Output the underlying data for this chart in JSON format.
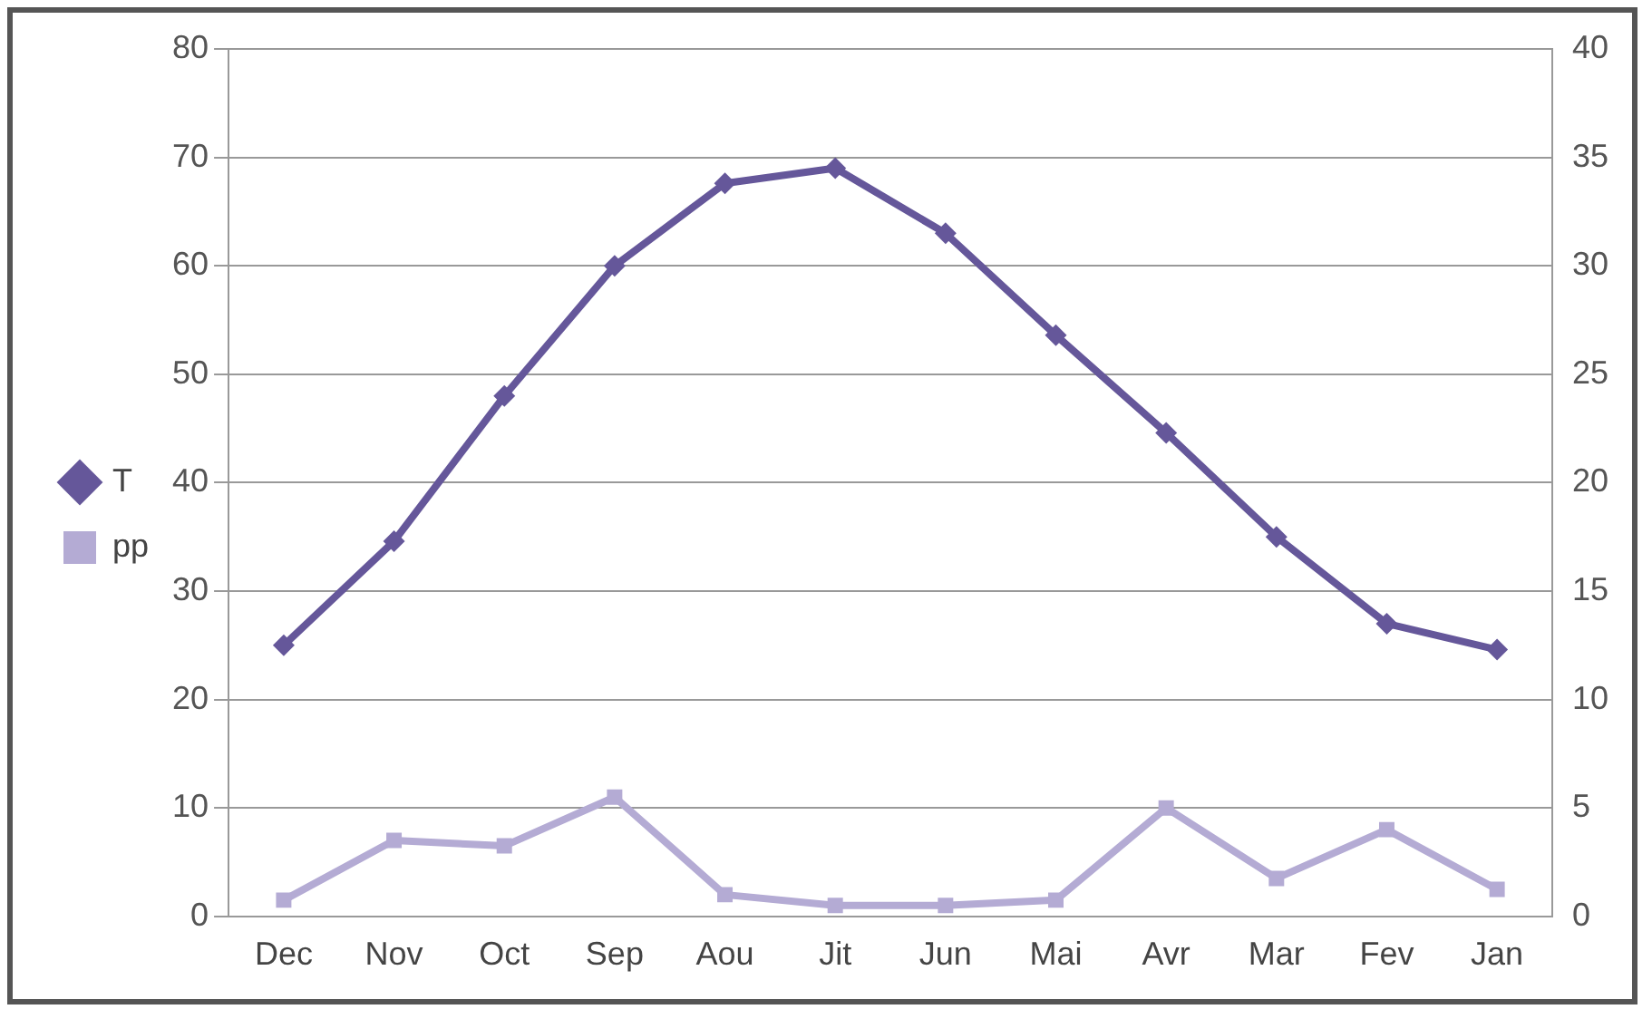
{
  "chart_data": {
    "type": "line",
    "categories": [
      "Dec",
      "Nov",
      "Oct",
      "Sep",
      "Aou",
      "Jit",
      "Jun",
      "Mai",
      "Avr",
      "Mar",
      "Fev",
      "Jan"
    ],
    "series": [
      {
        "name": "T",
        "color": "#65579a",
        "marker": "diamond",
        "axis": "y2",
        "values": [
          12.5,
          17.3,
          24,
          30,
          33.8,
          34.5,
          31.5,
          26.8,
          22.3,
          17.5,
          13.5,
          12.3
        ]
      },
      {
        "name": "pp",
        "color": "#b4abd4",
        "marker": "square",
        "values": [
          1.5,
          7,
          6.5,
          11,
          2,
          1,
          1,
          1.5,
          10,
          3.5,
          8,
          2.5
        ]
      }
    ],
    "ylim": [
      0,
      80
    ],
    "yticks": [
      0,
      10,
      20,
      30,
      40,
      50,
      60,
      70,
      80
    ],
    "y2lim": [
      0,
      40
    ],
    "y2ticks": [
      0,
      5,
      10,
      15,
      20,
      25,
      30,
      35,
      40
    ],
    "grid": "y",
    "legend": "left",
    "line_style": "solid"
  }
}
